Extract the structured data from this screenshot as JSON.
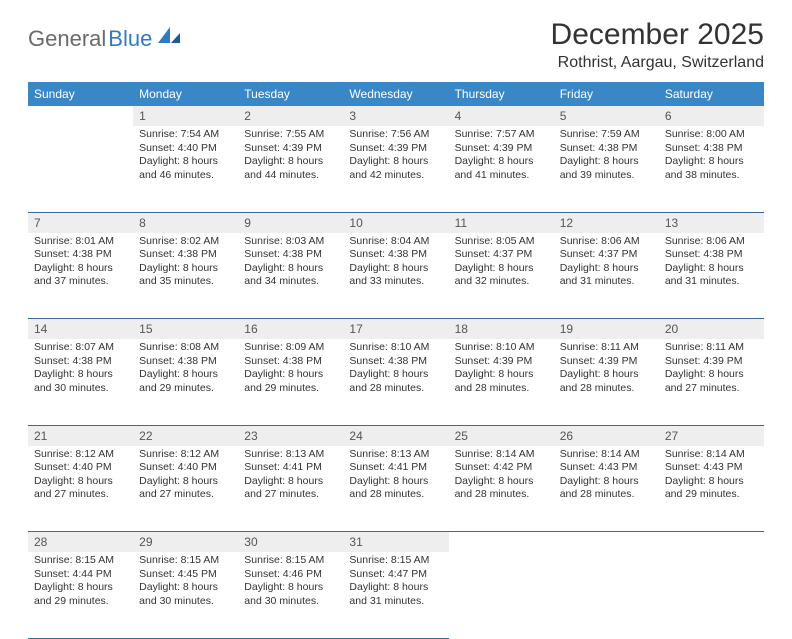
{
  "logo": {
    "text1": "General",
    "text2": "Blue"
  },
  "title": "December 2025",
  "location": "Rothrist, Aargau, Switzerland",
  "colors": {
    "header_bg": "#3a87c8",
    "header_text": "#ffffff",
    "daynum_bg": "#eeeeee",
    "cell_border": "#3a6a99",
    "logo_gray": "#6a6a6a",
    "logo_blue": "#2f7bbf"
  },
  "weekdays": [
    "Sunday",
    "Monday",
    "Tuesday",
    "Wednesday",
    "Thursday",
    "Friday",
    "Saturday"
  ],
  "weeks": [
    {
      "nums": [
        "",
        "1",
        "2",
        "3",
        "4",
        "5",
        "6"
      ],
      "cells": [
        null,
        {
          "sr": "Sunrise: 7:54 AM",
          "ss": "Sunset: 4:40 PM",
          "d1": "Daylight: 8 hours",
          "d2": "and 46 minutes."
        },
        {
          "sr": "Sunrise: 7:55 AM",
          "ss": "Sunset: 4:39 PM",
          "d1": "Daylight: 8 hours",
          "d2": "and 44 minutes."
        },
        {
          "sr": "Sunrise: 7:56 AM",
          "ss": "Sunset: 4:39 PM",
          "d1": "Daylight: 8 hours",
          "d2": "and 42 minutes."
        },
        {
          "sr": "Sunrise: 7:57 AM",
          "ss": "Sunset: 4:39 PM",
          "d1": "Daylight: 8 hours",
          "d2": "and 41 minutes."
        },
        {
          "sr": "Sunrise: 7:59 AM",
          "ss": "Sunset: 4:38 PM",
          "d1": "Daylight: 8 hours",
          "d2": "and 39 minutes."
        },
        {
          "sr": "Sunrise: 8:00 AM",
          "ss": "Sunset: 4:38 PM",
          "d1": "Daylight: 8 hours",
          "d2": "and 38 minutes."
        }
      ]
    },
    {
      "nums": [
        "7",
        "8",
        "9",
        "10",
        "11",
        "12",
        "13"
      ],
      "cells": [
        {
          "sr": "Sunrise: 8:01 AM",
          "ss": "Sunset: 4:38 PM",
          "d1": "Daylight: 8 hours",
          "d2": "and 37 minutes."
        },
        {
          "sr": "Sunrise: 8:02 AM",
          "ss": "Sunset: 4:38 PM",
          "d1": "Daylight: 8 hours",
          "d2": "and 35 minutes."
        },
        {
          "sr": "Sunrise: 8:03 AM",
          "ss": "Sunset: 4:38 PM",
          "d1": "Daylight: 8 hours",
          "d2": "and 34 minutes."
        },
        {
          "sr": "Sunrise: 8:04 AM",
          "ss": "Sunset: 4:38 PM",
          "d1": "Daylight: 8 hours",
          "d2": "and 33 minutes."
        },
        {
          "sr": "Sunrise: 8:05 AM",
          "ss": "Sunset: 4:37 PM",
          "d1": "Daylight: 8 hours",
          "d2": "and 32 minutes."
        },
        {
          "sr": "Sunrise: 8:06 AM",
          "ss": "Sunset: 4:37 PM",
          "d1": "Daylight: 8 hours",
          "d2": "and 31 minutes."
        },
        {
          "sr": "Sunrise: 8:06 AM",
          "ss": "Sunset: 4:38 PM",
          "d1": "Daylight: 8 hours",
          "d2": "and 31 minutes."
        }
      ]
    },
    {
      "nums": [
        "14",
        "15",
        "16",
        "17",
        "18",
        "19",
        "20"
      ],
      "cells": [
        {
          "sr": "Sunrise: 8:07 AM",
          "ss": "Sunset: 4:38 PM",
          "d1": "Daylight: 8 hours",
          "d2": "and 30 minutes."
        },
        {
          "sr": "Sunrise: 8:08 AM",
          "ss": "Sunset: 4:38 PM",
          "d1": "Daylight: 8 hours",
          "d2": "and 29 minutes."
        },
        {
          "sr": "Sunrise: 8:09 AM",
          "ss": "Sunset: 4:38 PM",
          "d1": "Daylight: 8 hours",
          "d2": "and 29 minutes."
        },
        {
          "sr": "Sunrise: 8:10 AM",
          "ss": "Sunset: 4:38 PM",
          "d1": "Daylight: 8 hours",
          "d2": "and 28 minutes."
        },
        {
          "sr": "Sunrise: 8:10 AM",
          "ss": "Sunset: 4:39 PM",
          "d1": "Daylight: 8 hours",
          "d2": "and 28 minutes."
        },
        {
          "sr": "Sunrise: 8:11 AM",
          "ss": "Sunset: 4:39 PM",
          "d1": "Daylight: 8 hours",
          "d2": "and 28 minutes."
        },
        {
          "sr": "Sunrise: 8:11 AM",
          "ss": "Sunset: 4:39 PM",
          "d1": "Daylight: 8 hours",
          "d2": "and 27 minutes."
        }
      ]
    },
    {
      "nums": [
        "21",
        "22",
        "23",
        "24",
        "25",
        "26",
        "27"
      ],
      "cells": [
        {
          "sr": "Sunrise: 8:12 AM",
          "ss": "Sunset: 4:40 PM",
          "d1": "Daylight: 8 hours",
          "d2": "and 27 minutes."
        },
        {
          "sr": "Sunrise: 8:12 AM",
          "ss": "Sunset: 4:40 PM",
          "d1": "Daylight: 8 hours",
          "d2": "and 27 minutes."
        },
        {
          "sr": "Sunrise: 8:13 AM",
          "ss": "Sunset: 4:41 PM",
          "d1": "Daylight: 8 hours",
          "d2": "and 27 minutes."
        },
        {
          "sr": "Sunrise: 8:13 AM",
          "ss": "Sunset: 4:41 PM",
          "d1": "Daylight: 8 hours",
          "d2": "and 28 minutes."
        },
        {
          "sr": "Sunrise: 8:14 AM",
          "ss": "Sunset: 4:42 PM",
          "d1": "Daylight: 8 hours",
          "d2": "and 28 minutes."
        },
        {
          "sr": "Sunrise: 8:14 AM",
          "ss": "Sunset: 4:43 PM",
          "d1": "Daylight: 8 hours",
          "d2": "and 28 minutes."
        },
        {
          "sr": "Sunrise: 8:14 AM",
          "ss": "Sunset: 4:43 PM",
          "d1": "Daylight: 8 hours",
          "d2": "and 29 minutes."
        }
      ]
    },
    {
      "nums": [
        "28",
        "29",
        "30",
        "31",
        "",
        "",
        ""
      ],
      "cells": [
        {
          "sr": "Sunrise: 8:15 AM",
          "ss": "Sunset: 4:44 PM",
          "d1": "Daylight: 8 hours",
          "d2": "and 29 minutes."
        },
        {
          "sr": "Sunrise: 8:15 AM",
          "ss": "Sunset: 4:45 PM",
          "d1": "Daylight: 8 hours",
          "d2": "and 30 minutes."
        },
        {
          "sr": "Sunrise: 8:15 AM",
          "ss": "Sunset: 4:46 PM",
          "d1": "Daylight: 8 hours",
          "d2": "and 30 minutes."
        },
        {
          "sr": "Sunrise: 8:15 AM",
          "ss": "Sunset: 4:47 PM",
          "d1": "Daylight: 8 hours",
          "d2": "and 31 minutes."
        },
        null,
        null,
        null
      ]
    }
  ]
}
